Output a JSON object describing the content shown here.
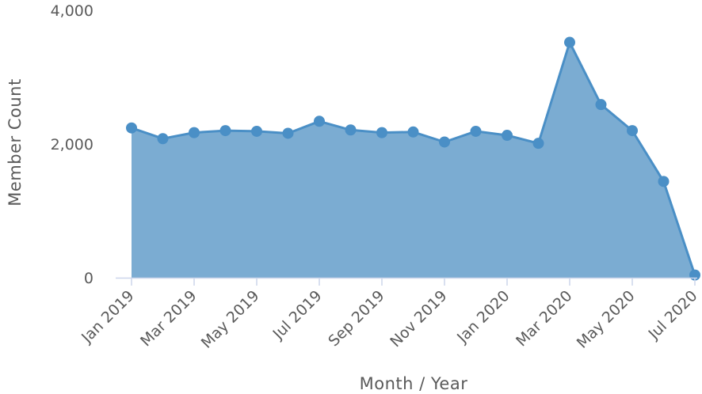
{
  "chart_data": {
    "type": "area",
    "xlabel": "Month / Year",
    "ylabel": "Member Count",
    "ylim": [
      0,
      4000
    ],
    "yticks": [
      0,
      2000,
      4000
    ],
    "ytick_labels": [
      "0",
      "2,000",
      "4,000"
    ],
    "x": [
      "Jan 2019",
      "Feb 2019",
      "Mar 2019",
      "Apr 2019",
      "May 2019",
      "Jun 2019",
      "Jul 2019",
      "Aug 2019",
      "Sep 2019",
      "Oct 2019",
      "Nov 2019",
      "Dec 2019",
      "Jan 2020",
      "Feb 2020",
      "Mar 2020",
      "Apr 2020",
      "May 2020",
      "Jun 2020",
      "Jul 2020"
    ],
    "xtick_labels": [
      "Jan 2019",
      "Mar 2019",
      "May 2019",
      "Jul 2019",
      "Sep 2019",
      "Nov 2019",
      "Jan 2020",
      "Mar 2020",
      "May 2020",
      "Jul 2020"
    ],
    "xtick_every": 2,
    "series": [
      {
        "values": [
          2240,
          2080,
          2170,
          2200,
          2190,
          2160,
          2340,
          2210,
          2170,
          2180,
          2030,
          2190,
          2130,
          2010,
          3520,
          2590,
          2200,
          1440,
          40
        ]
      }
    ],
    "grid": false,
    "colors": {
      "fill": "#7bacd2",
      "line": "#4a8fc6",
      "marker": "#4a8fc6",
      "axis": "#ccd6eb",
      "text": "#5a5a5a"
    }
  }
}
